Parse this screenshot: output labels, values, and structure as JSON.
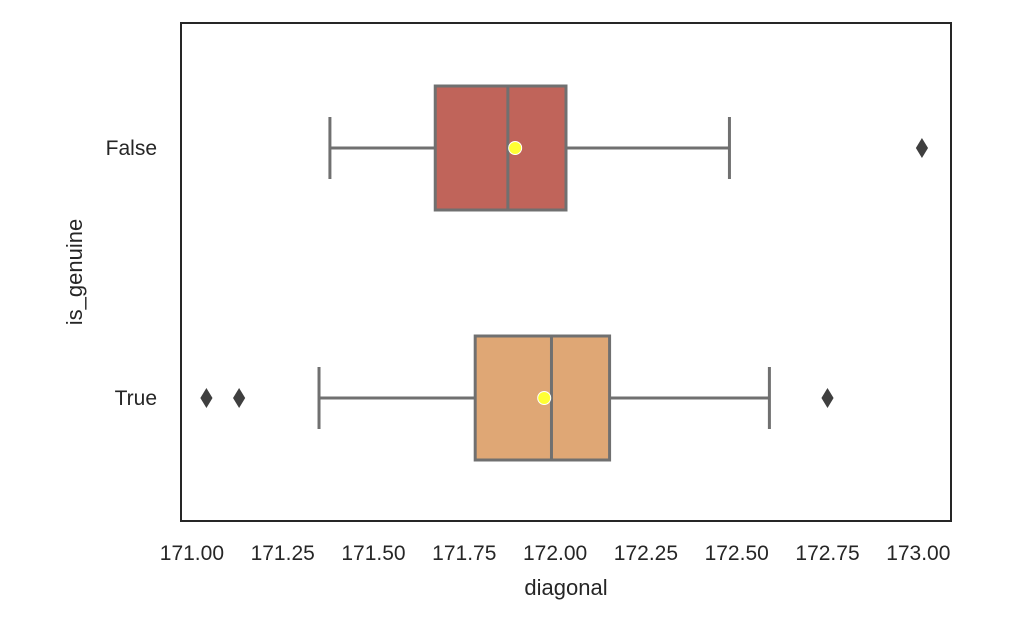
{
  "chart_data": {
    "type": "boxplot",
    "orientation": "horizontal",
    "xlabel": "diagonal",
    "ylabel": "is_genuine",
    "xlim": [
      170.97,
      173.09
    ],
    "xticks": [
      171.0,
      171.25,
      171.5,
      171.75,
      172.0,
      172.25,
      172.5,
      172.75,
      173.0
    ],
    "xtick_labels": [
      "171.00",
      "171.25",
      "171.50",
      "171.75",
      "172.00",
      "172.25",
      "172.50",
      "172.75",
      "173.00"
    ],
    "categories": [
      "False",
      "True"
    ],
    "grid": false,
    "mean_marker_color": "#ffff33",
    "boxes": [
      {
        "category": "False",
        "color": "#c0645a",
        "whisker_low": 171.38,
        "q1": 171.67,
        "median": 171.87,
        "q3": 172.03,
        "whisker_high": 172.48,
        "mean": 171.89,
        "outliers": [
          173.01
        ]
      },
      {
        "category": "True",
        "color": "#dfa775",
        "whisker_low": 171.35,
        "q1": 171.78,
        "median": 171.99,
        "q3": 172.15,
        "whisker_high": 172.59,
        "mean": 171.97,
        "outliers": [
          171.04,
          171.13,
          172.75
        ]
      }
    ]
  }
}
